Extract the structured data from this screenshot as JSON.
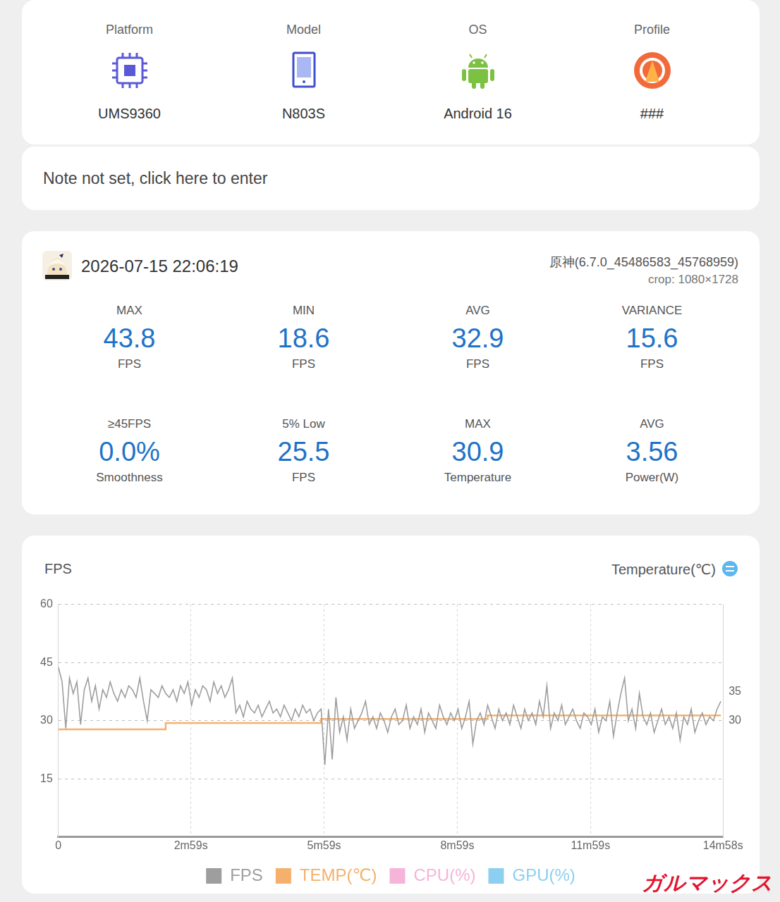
{
  "header": {
    "items": [
      {
        "label": "Platform",
        "value": "UMS9360"
      },
      {
        "label": "Model",
        "value": "N803S"
      },
      {
        "label": "OS",
        "value": "Android 16"
      },
      {
        "label": "Profile",
        "value": "###"
      }
    ]
  },
  "note": "Note not set, click here to enter",
  "session": {
    "datetime": "2026-07-15 22:06:19",
    "app": "原神(6.7.0_45486583_45768959)",
    "crop": "crop: 1080×1728",
    "stats": [
      {
        "label": "MAX",
        "value": "43.8",
        "unit": "FPS"
      },
      {
        "label": "MIN",
        "value": "18.6",
        "unit": "FPS"
      },
      {
        "label": "AVG",
        "value": "32.9",
        "unit": "FPS"
      },
      {
        "label": "VARIANCE",
        "value": "15.6",
        "unit": "FPS"
      },
      {
        "label": "≥45FPS",
        "value": "0.0%",
        "unit": "Smoothness"
      },
      {
        "label": "5% Low",
        "value": "25.5",
        "unit": "FPS"
      },
      {
        "label": "MAX",
        "value": "30.9",
        "unit": "Temperature"
      },
      {
        "label": "AVG",
        "value": "3.56",
        "unit": "Power(W)"
      }
    ]
  },
  "chart_data": {
    "type": "line",
    "ylabel": "FPS",
    "y2label": "Temperature(℃)",
    "x": [
      0,
      5,
      10,
      15,
      20,
      25,
      30,
      35,
      40,
      45,
      50,
      55,
      60,
      65,
      70,
      75,
      80,
      85,
      90,
      95,
      100,
      105,
      110,
      115,
      120,
      125,
      130,
      135,
      140,
      145,
      150,
      155,
      160,
      165,
      170,
      175,
      180,
      185,
      190,
      195,
      200,
      205,
      210,
      215,
      220,
      225,
      230,
      235,
      240,
      245,
      250,
      255,
      260,
      265,
      270,
      275,
      280,
      285,
      290,
      295,
      300,
      305,
      310,
      315,
      320,
      325,
      330,
      335,
      340,
      345,
      350,
      355,
      360,
      365,
      370,
      375,
      380,
      385,
      390,
      395,
      400,
      405,
      410,
      415,
      420,
      425,
      430,
      435,
      440,
      445,
      450,
      455,
      460,
      465,
      470,
      475,
      480,
      485,
      490,
      495,
      500,
      505,
      510,
      515,
      520,
      525,
      530,
      535,
      540,
      545,
      550,
      555,
      560,
      565,
      570,
      575,
      580,
      585,
      590,
      595,
      600,
      605,
      610,
      615,
      620,
      625,
      630,
      635,
      640,
      645,
      650,
      655,
      660,
      665,
      670,
      675,
      680,
      685,
      690,
      695,
      700,
      705,
      710,
      715,
      720,
      725,
      730,
      735,
      740,
      745,
      750,
      755,
      760,
      765,
      770,
      775,
      780,
      785,
      790,
      795,
      800,
      805,
      810,
      815,
      820,
      825,
      830,
      835,
      840,
      845,
      850,
      855,
      860,
      865,
      870,
      875,
      880,
      885,
      890,
      895
    ],
    "xlim": [
      0,
      898
    ],
    "xticks": [
      {
        "value": 0,
        "label": "0"
      },
      {
        "value": 179,
        "label": "2m59s"
      },
      {
        "value": 359,
        "label": "5m59s"
      },
      {
        "value": 539,
        "label": "8m59s"
      },
      {
        "value": 719,
        "label": "11m59s"
      },
      {
        "value": 898,
        "label": "14m58s"
      }
    ],
    "ylim": [
      0,
      60
    ],
    "yticks": [
      15,
      30,
      45,
      60
    ],
    "y2lim": [
      10,
      50
    ],
    "y2ticks": [
      30,
      35
    ],
    "grid": true,
    "legend": "bottom",
    "series": [
      {
        "name": "FPS",
        "color": "#9e9e9e",
        "values": [
          43.8,
          40,
          28,
          41,
          37,
          40,
          29,
          38,
          41,
          35,
          39,
          33,
          38,
          36,
          40,
          37,
          35,
          38,
          36,
          39,
          38,
          36,
          41,
          35,
          30,
          38,
          37,
          36,
          39,
          37,
          36,
          38,
          35,
          39,
          37,
          40,
          34,
          38,
          36,
          39,
          38,
          35,
          40,
          37,
          39,
          36,
          38,
          41,
          32,
          34,
          31,
          35,
          33,
          32,
          34,
          31,
          33,
          35,
          32,
          33,
          31,
          34,
          32,
          30,
          33,
          31,
          34,
          32,
          33,
          30,
          32,
          33,
          18.6,
          33,
          20,
          36,
          27,
          31,
          25,
          33,
          28,
          30,
          32,
          35,
          29,
          31,
          28,
          32,
          30,
          27,
          31,
          33,
          29,
          30,
          34,
          28,
          31,
          29,
          33,
          27,
          32,
          30,
          28,
          34,
          31,
          29,
          32,
          30,
          33,
          28,
          31,
          35,
          24,
          30,
          32,
          29,
          34,
          31,
          28,
          33,
          30,
          32,
          29,
          34,
          31,
          28,
          33,
          30,
          32,
          29,
          35,
          31,
          39,
          28,
          32,
          30,
          34,
          29,
          31,
          33,
          30,
          28,
          32,
          31,
          29,
          33,
          27,
          31,
          30,
          35,
          26,
          32,
          37,
          41,
          30,
          33,
          28,
          37,
          31,
          29,
          32,
          27,
          30,
          33,
          29,
          31,
          28,
          32,
          25,
          31,
          29,
          33,
          27,
          30,
          32,
          29,
          31,
          30,
          33,
          35
        ]
      },
      {
        "name": "TEMP(℃)",
        "color": "#f4b06c",
        "axis": "y2",
        "values": [
          28.5,
          28.5,
          28.5,
          28.5,
          28.5,
          28.5,
          28.5,
          28.5,
          28.5,
          28.5,
          28.5,
          28.5,
          28.5,
          28.5,
          28.5,
          28.5,
          28.5,
          28.5,
          28.5,
          28.5,
          28.5,
          28.5,
          28.5,
          28.5,
          28.5,
          28.5,
          28.5,
          28.5,
          28.5,
          29.6,
          29.6,
          29.6,
          29.6,
          29.6,
          29.6,
          29.6,
          29.6,
          29.6,
          29.6,
          29.6,
          29.6,
          29.6,
          29.6,
          29.6,
          29.6,
          29.6,
          29.6,
          29.6,
          29.6,
          29.6,
          29.6,
          29.6,
          29.6,
          29.6,
          29.6,
          29.6,
          29.6,
          29.6,
          29.6,
          29.6,
          29.6,
          29.6,
          29.6,
          29.6,
          29.6,
          29.6,
          29.6,
          29.6,
          29.6,
          29.6,
          29.6,
          30.3,
          30.3,
          30.3,
          30.3,
          30.3,
          30.3,
          30.3,
          30.3,
          30.3,
          30.3,
          30.3,
          30.3,
          30.3,
          30.3,
          30.3,
          30.3,
          30.3,
          30.3,
          30.3,
          30.3,
          30.3,
          30.3,
          30.3,
          30.3,
          30.3,
          30.3,
          30.3,
          30.3,
          30.3,
          30.3,
          30.3,
          30.3,
          30.3,
          30.3,
          30.3,
          30.3,
          30.3,
          30.3,
          30.3,
          30.3,
          30.3,
          30.3,
          30.3,
          30.3,
          30.3,
          30.9,
          30.9,
          30.9,
          30.9,
          30.9,
          30.9,
          30.9,
          30.9,
          30.9,
          30.9,
          30.9,
          30.9,
          30.9,
          30.9,
          30.9,
          30.9,
          30.9,
          30.9,
          30.9,
          30.9,
          30.9,
          30.9,
          30.9,
          30.9,
          30.9,
          30.9,
          30.9,
          30.9,
          30.9,
          30.9,
          30.9,
          30.9,
          30.9,
          30.9,
          30.9,
          30.9,
          30.9,
          30.9,
          30.9,
          30.9,
          30.9,
          30.9,
          30.9,
          30.9,
          30.9,
          30.9,
          30.9,
          30.9,
          30.9,
          30.9,
          30.9,
          30.9,
          30.9,
          30.9,
          30.9,
          30.9,
          30.9,
          30.9,
          30.9,
          30.9,
          30.9,
          30.9,
          30.9,
          30.9
        ]
      },
      {
        "name": "CPU(%)",
        "color": "#f5b4d8",
        "values": [
          null,
          null,
          null,
          null,
          null,
          null,
          null,
          null,
          null,
          null,
          null,
          null,
          null,
          null,
          null,
          null,
          null,
          null,
          null,
          null,
          null,
          null,
          null,
          null,
          null,
          null,
          null,
          null,
          null,
          null,
          null,
          null,
          null,
          null,
          null,
          null,
          null,
          null,
          null,
          null,
          null,
          null,
          null,
          null,
          null,
          null,
          null,
          null,
          null,
          null,
          null,
          null,
          null,
          null,
          null,
          null,
          null,
          null,
          null,
          null,
          null,
          null,
          null,
          null,
          null,
          null,
          null,
          null,
          null,
          null,
          null,
          null,
          null,
          null,
          null,
          null,
          null,
          null,
          null,
          null,
          null,
          null,
          null,
          null,
          null,
          null,
          null,
          null,
          null,
          null,
          null,
          null,
          null,
          null,
          null,
          null,
          null,
          null,
          null,
          null,
          null,
          null,
          null,
          null,
          null,
          null,
          null,
          null,
          null,
          null,
          null,
          null,
          null,
          null,
          null,
          null,
          null,
          null,
          null,
          null,
          null,
          null,
          null,
          null,
          null,
          null,
          null,
          null,
          null,
          null,
          null,
          null,
          null,
          null,
          null,
          null,
          null,
          null,
          null,
          null,
          null,
          null,
          null,
          null,
          null,
          null,
          null,
          null,
          null,
          null,
          null,
          null,
          null,
          null,
          null,
          null,
          null,
          null,
          null,
          null,
          null,
          null,
          null,
          null,
          null,
          null,
          null,
          null,
          null,
          null,
          null,
          null,
          null,
          null,
          null,
          null,
          null,
          null,
          null,
          null
        ]
      },
      {
        "name": "GPU(%)",
        "color": "#8ccff0",
        "values": [
          null,
          null,
          null,
          null,
          null,
          null,
          null,
          null,
          null,
          null,
          null,
          null,
          null,
          null,
          null,
          null,
          null,
          null,
          null,
          null,
          null,
          null,
          null,
          null,
          null,
          null,
          null,
          null,
          null,
          null,
          null,
          null,
          null,
          null,
          null,
          null,
          null,
          null,
          null,
          null,
          null,
          null,
          null,
          null,
          null,
          null,
          null,
          null,
          null,
          null,
          null,
          null,
          null,
          null,
          null,
          null,
          null,
          null,
          null,
          null,
          null,
          null,
          null,
          null,
          null,
          null,
          null,
          null,
          null,
          null,
          null,
          null,
          null,
          null,
          null,
          null,
          null,
          null,
          null,
          null,
          null,
          null,
          null,
          null,
          null,
          null,
          null,
          null,
          null,
          null,
          null,
          null,
          null,
          null,
          null,
          null,
          null,
          null,
          null,
          null,
          null,
          null,
          null,
          null,
          null,
          null,
          null,
          null,
          null,
          null,
          null,
          null,
          null,
          null,
          null,
          null,
          null,
          null,
          null,
          null,
          null,
          null,
          null,
          null,
          null,
          null,
          null,
          null,
          null,
          null,
          null,
          null,
          null,
          null,
          null,
          null,
          null,
          null,
          null,
          null,
          null,
          null,
          null,
          null,
          null,
          null,
          null,
          null,
          null,
          null,
          null,
          null,
          null,
          null,
          null,
          null,
          null,
          null,
          null,
          null,
          null,
          null,
          null,
          null,
          null,
          null,
          null,
          null,
          null,
          null,
          null,
          null,
          null,
          null,
          null,
          null,
          null,
          null,
          null,
          null
        ]
      }
    ]
  },
  "watermark": "ガルマックス"
}
